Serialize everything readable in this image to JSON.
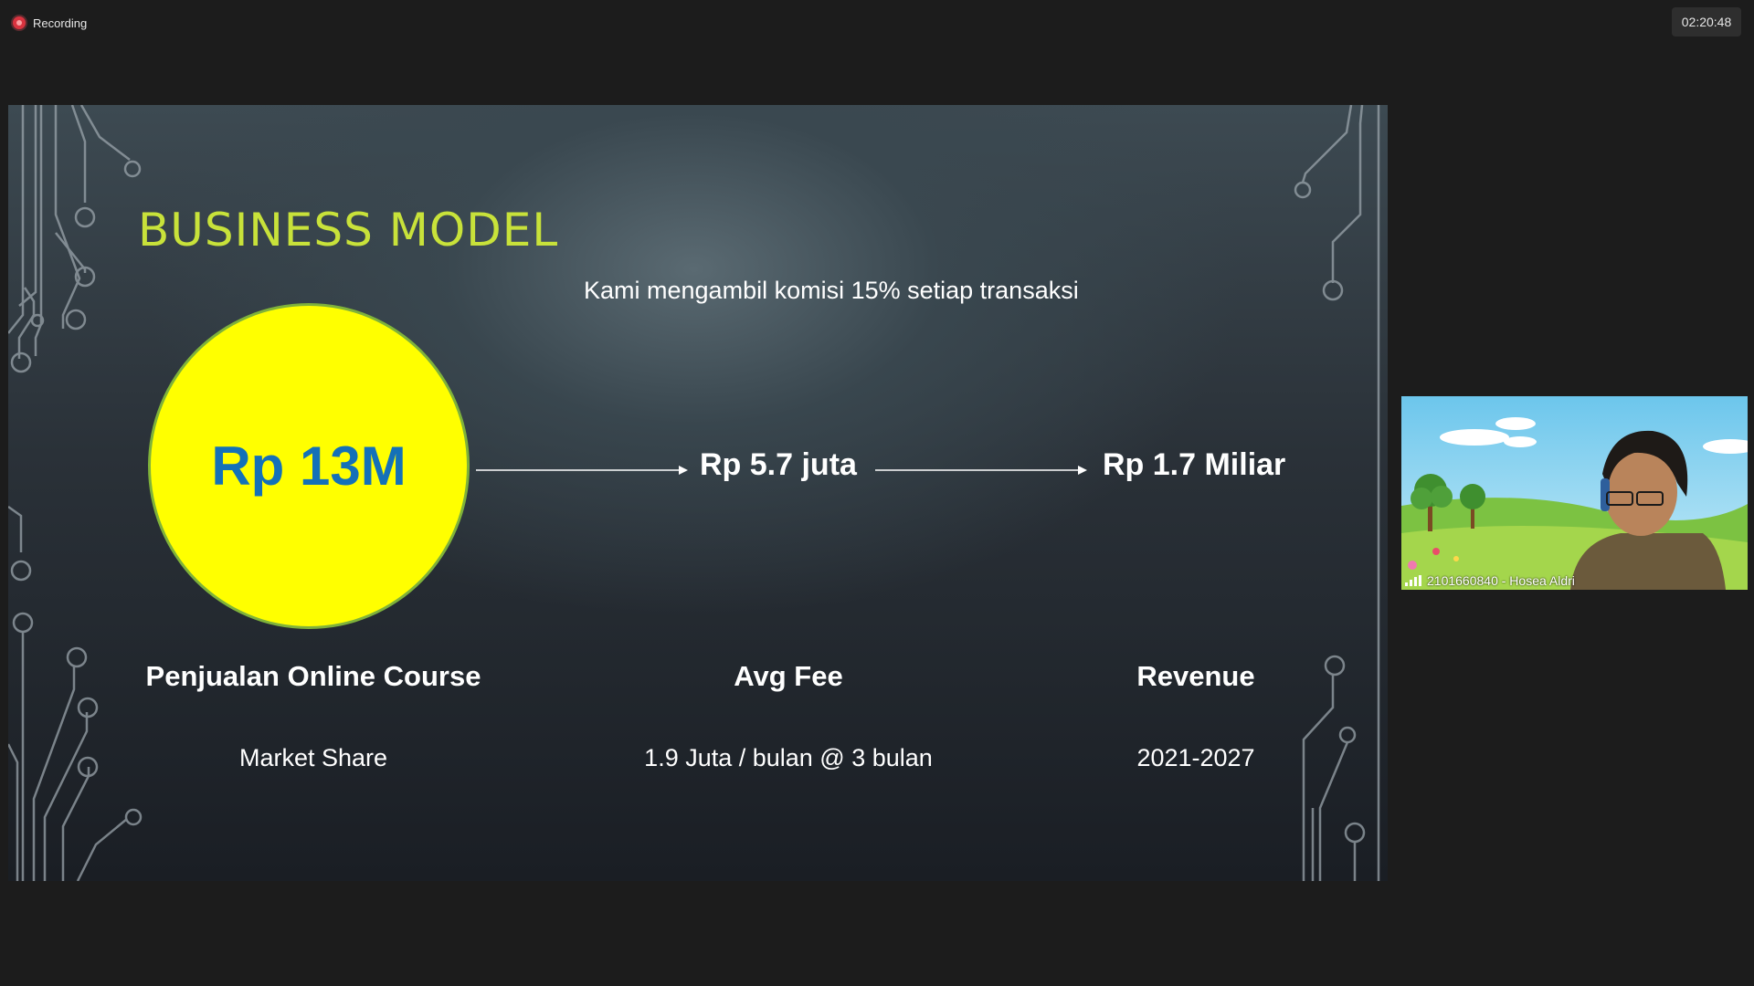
{
  "recording": {
    "label": "Recording",
    "color": "#d9333f"
  },
  "timer": {
    "value": "02:20:48"
  },
  "slide": {
    "title": "BUSINESS MODEL",
    "subtitle": "Kami mengambil komisi 15% setiap transaksi",
    "circle_value": "Rp 13M",
    "fee_value": "Rp 5.7 juta",
    "revenue_value": "Rp 1.7 Miliar",
    "columns": [
      {
        "label": "Penjualan Online Course",
        "sub": "Market Share"
      },
      {
        "label": "Avg Fee",
        "sub": "1.9 Juta / bulan @ 3 bulan"
      },
      {
        "label": "Revenue",
        "sub": "2021-2027"
      }
    ],
    "colors": {
      "title": "#c8e23a",
      "circle": "#ffff00",
      "circle_text": "#1471b8"
    }
  },
  "participant": {
    "name": "2101660840 - Hosea Aldri",
    "icon": "signal-bars-icon"
  }
}
